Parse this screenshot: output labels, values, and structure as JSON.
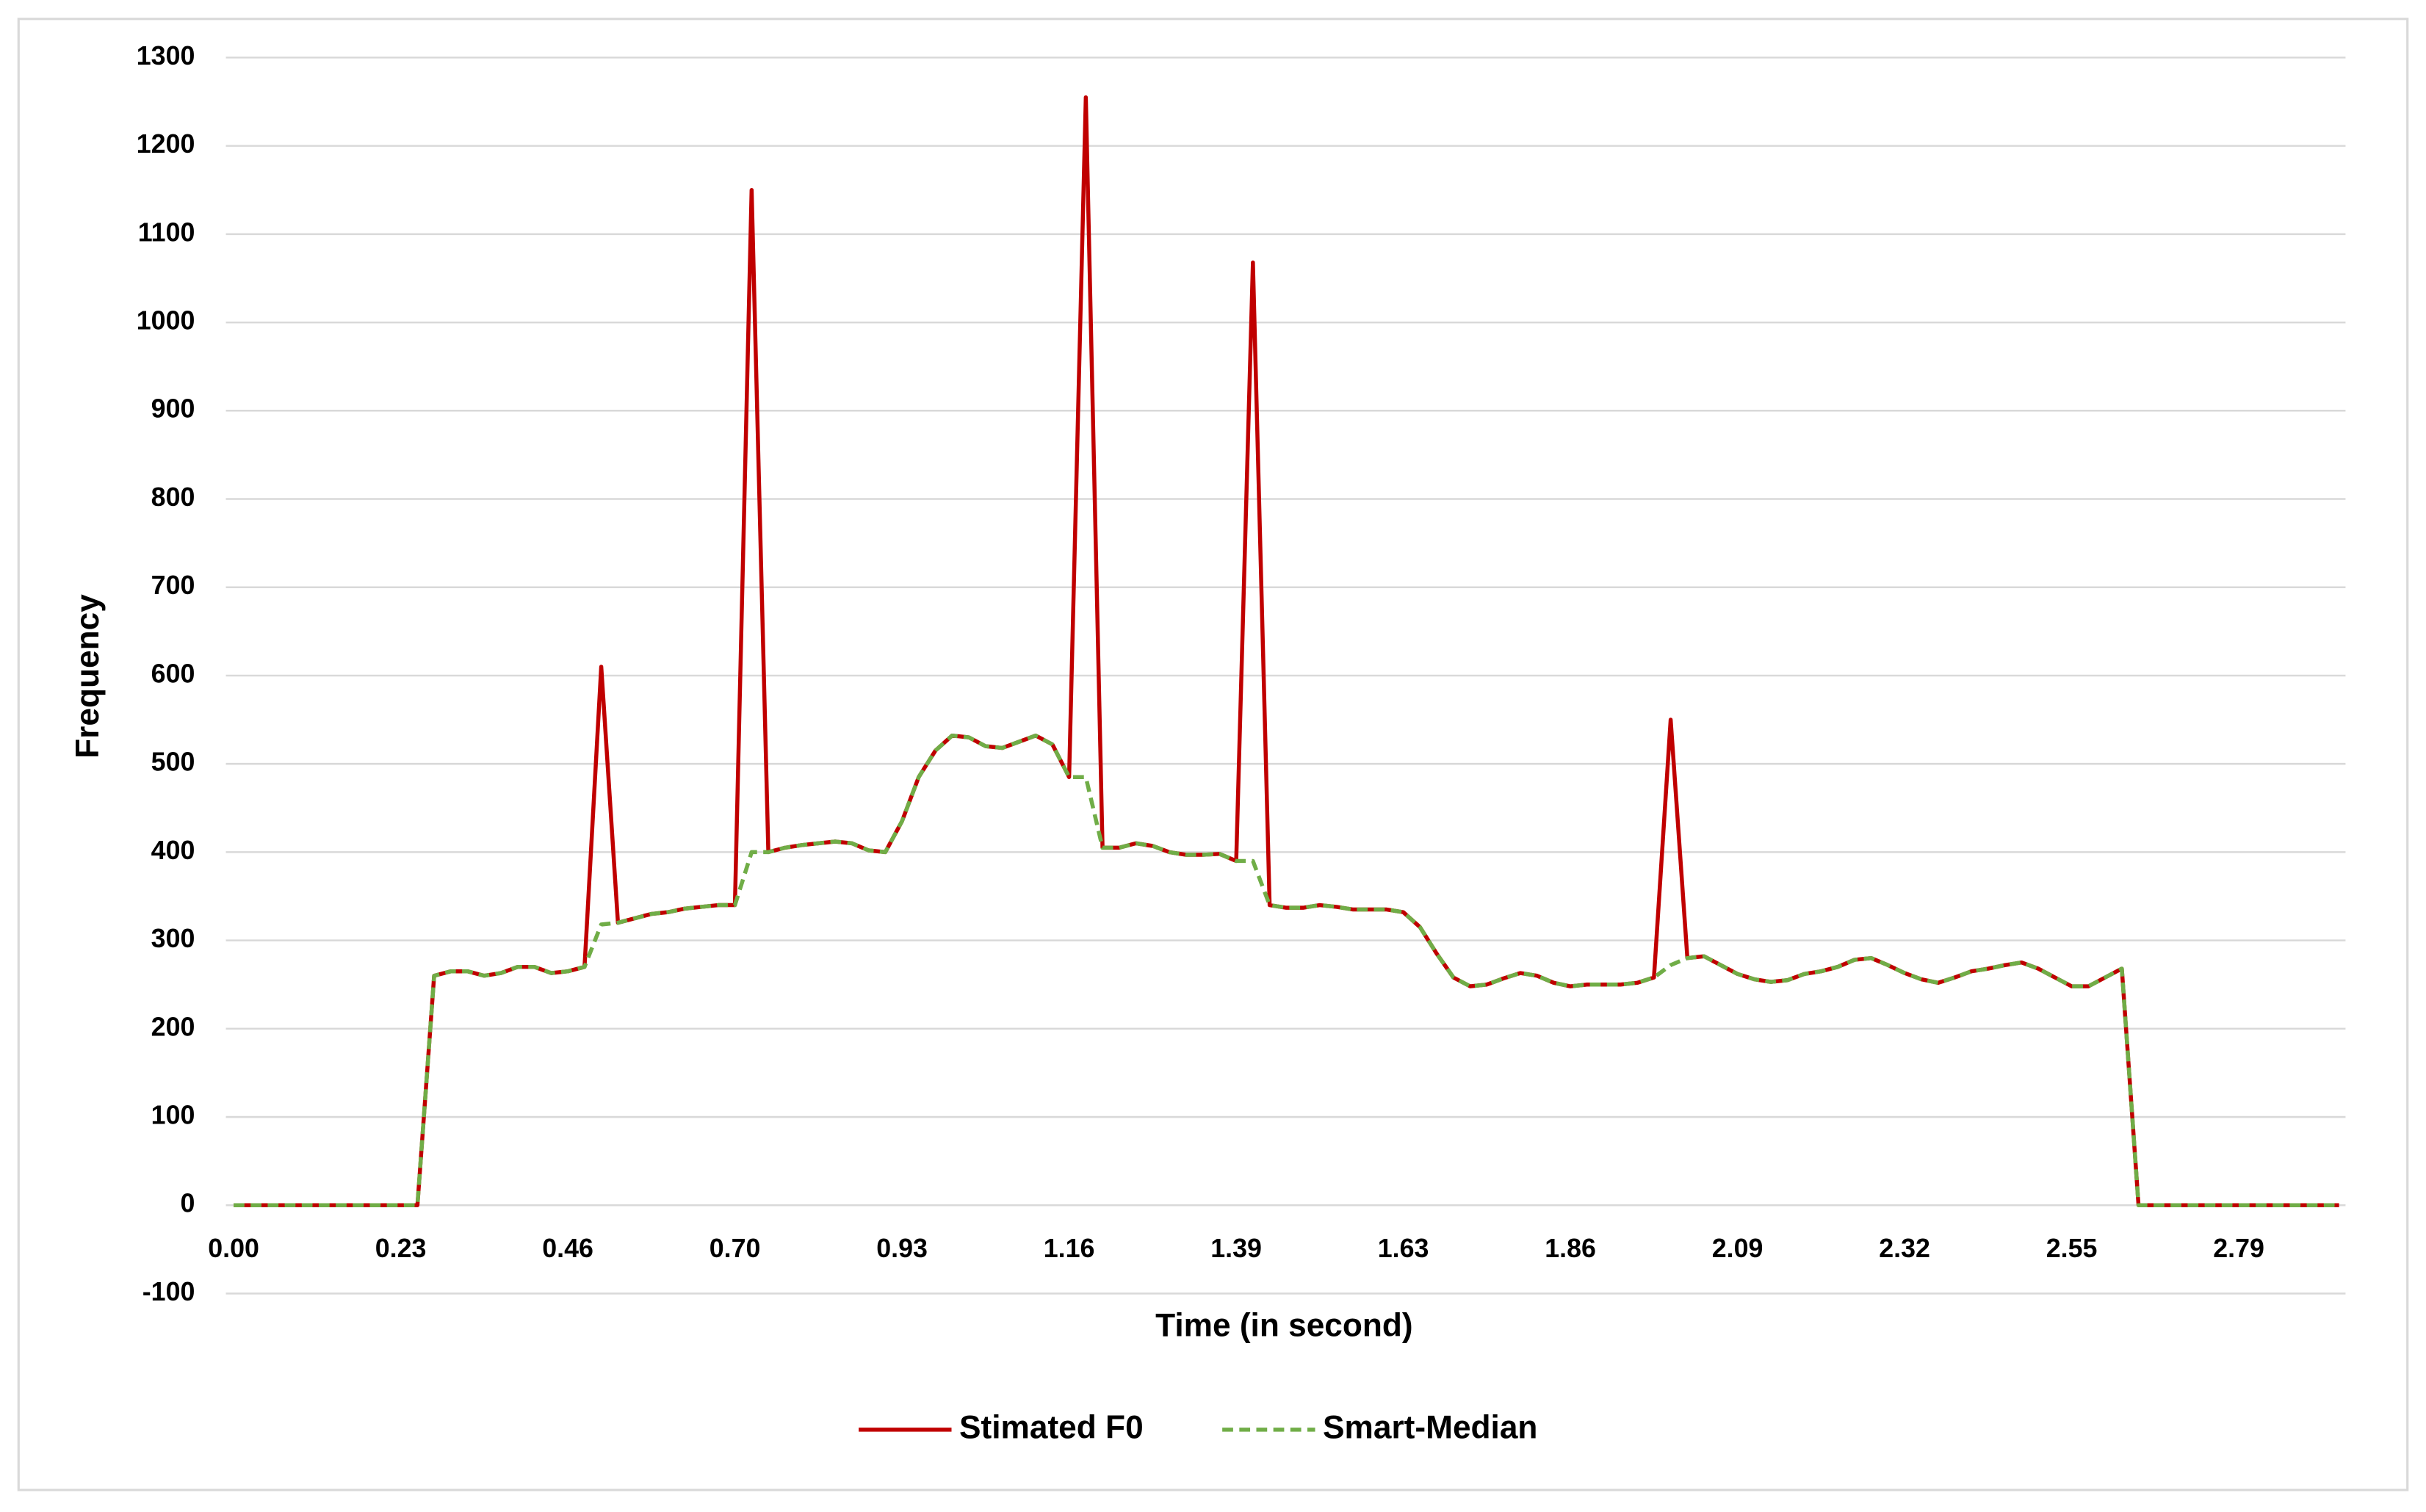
{
  "chart_data": {
    "type": "line",
    "x_label": "Time (in second)",
    "y_label": "Frequency",
    "categories": [
      "0.00",
      null,
      null,
      null,
      null,
      null,
      null,
      null,
      null,
      null,
      "0.23",
      null,
      null,
      null,
      null,
      null,
      null,
      null,
      null,
      null,
      "0.46",
      null,
      null,
      null,
      null,
      null,
      null,
      null,
      null,
      null,
      "0.70",
      null,
      null,
      null,
      null,
      null,
      null,
      null,
      null,
      null,
      "0.93",
      null,
      null,
      null,
      null,
      null,
      null,
      null,
      null,
      null,
      "1.16",
      null,
      null,
      null,
      null,
      null,
      null,
      null,
      null,
      null,
      "1.39",
      null,
      null,
      null,
      null,
      null,
      null,
      null,
      null,
      null,
      "1.63",
      null,
      null,
      null,
      null,
      null,
      null,
      null,
      null,
      null,
      "1.86",
      null,
      null,
      null,
      null,
      null,
      null,
      null,
      null,
      null,
      "2.09",
      null,
      null,
      null,
      null,
      null,
      null,
      null,
      null,
      null,
      "2.32",
      null,
      null,
      null,
      null,
      null,
      null,
      null,
      null,
      null,
      "2.55",
      null,
      null,
      null,
      null,
      null,
      null,
      null,
      null,
      null,
      "2.79",
      null,
      null,
      null,
      null,
      null,
      null
    ],
    "series": [
      {
        "name": "Stimated F0",
        "color": "#c00000",
        "style": "solid",
        "values": [
          0,
          0,
          0,
          0,
          0,
          0,
          0,
          0,
          0,
          0,
          0,
          0,
          260,
          265,
          265,
          260,
          263,
          270,
          270,
          263,
          265,
          270,
          610,
          320,
          325,
          330,
          332,
          336,
          338,
          340,
          340,
          1150,
          400,
          405,
          408,
          410,
          412,
          410,
          402,
          400,
          435,
          485,
          515,
          532,
          530,
          520,
          518,
          525,
          532,
          522,
          485,
          1255,
          405,
          405,
          410,
          407,
          400,
          397,
          397,
          398,
          390,
          1068,
          340,
          337,
          337,
          340,
          338,
          335,
          335,
          335,
          332,
          315,
          285,
          258,
          248,
          250,
          257,
          263,
          260,
          252,
          248,
          250,
          250,
          250,
          252,
          258,
          550,
          280,
          282,
          272,
          262,
          256,
          253,
          255,
          262,
          265,
          270,
          278,
          280,
          272,
          263,
          256,
          252,
          258,
          265,
          268,
          272,
          275,
          268,
          258,
          248,
          248,
          258,
          268,
          0,
          0,
          0,
          0,
          0,
          0,
          0,
          0,
          0,
          0,
          0,
          0,
          0
        ]
      },
      {
        "name": "Smart-Median",
        "color": "#70ad47",
        "style": "dashed",
        "values": [
          0,
          0,
          0,
          0,
          0,
          0,
          0,
          0,
          0,
          0,
          0,
          0,
          260,
          265,
          265,
          260,
          263,
          270,
          270,
          263,
          265,
          270,
          318,
          320,
          325,
          330,
          332,
          336,
          338,
          340,
          340,
          400,
          400,
          405,
          408,
          410,
          412,
          410,
          402,
          400,
          435,
          485,
          515,
          532,
          530,
          520,
          518,
          525,
          532,
          522,
          485,
          485,
          405,
          405,
          410,
          407,
          400,
          397,
          397,
          398,
          390,
          390,
          340,
          337,
          337,
          340,
          338,
          335,
          335,
          335,
          332,
          315,
          285,
          258,
          248,
          250,
          257,
          263,
          260,
          252,
          248,
          250,
          250,
          250,
          252,
          258,
          272,
          280,
          282,
          272,
          262,
          256,
          253,
          255,
          262,
          265,
          270,
          278,
          280,
          272,
          263,
          256,
          252,
          258,
          265,
          268,
          272,
          275,
          268,
          258,
          248,
          248,
          258,
          268,
          0,
          0,
          0,
          0,
          0,
          0,
          0,
          0,
          0,
          0,
          0,
          0,
          0
        ]
      }
    ],
    "ylim": [
      -100,
      1300
    ],
    "yticks": [
      -100,
      0,
      100,
      200,
      300,
      400,
      500,
      600,
      700,
      800,
      900,
      1000,
      1100,
      1200,
      1300
    ],
    "grid": true,
    "legend": "bottom"
  }
}
